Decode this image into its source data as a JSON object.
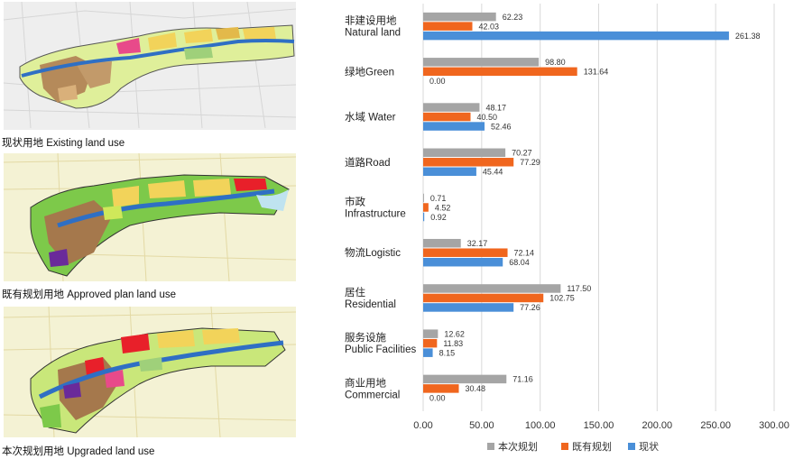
{
  "maps": [
    {
      "caption": "现状用地 Existing land use"
    },
    {
      "caption": "既有规划用地 Approved plan land use"
    },
    {
      "caption": "本次规划用地 Upgraded land use"
    }
  ],
  "chart_data": {
    "type": "bar",
    "orientation": "horizontal",
    "categories": [
      [
        "非建设用地",
        "Natural  land"
      ],
      [
        "绿地Green"
      ],
      [
        "水域 Water"
      ],
      [
        "道路Road"
      ],
      [
        "市政",
        "Infrastructure"
      ],
      [
        "物流Logistic"
      ],
      [
        "居住",
        "Residential"
      ],
      [
        "服务设施",
        "Public Facilities"
      ],
      [
        "商业用地",
        "Commercial"
      ]
    ],
    "series": [
      {
        "name": "本次规划",
        "color": "#a5a5a5",
        "values": [
          62.23,
          98.8,
          48.17,
          70.27,
          0.71,
          32.17,
          117.5,
          12.62,
          71.16
        ],
        "labels": [
          "62.23",
          "98.80",
          "48.17",
          "70.27",
          "0.71",
          "32.17",
          "117.50",
          "12.62",
          "71.16"
        ]
      },
      {
        "name": "既有规划",
        "color": "#f0661e",
        "values": [
          42.03,
          131.64,
          40.5,
          77.29,
          4.52,
          72.14,
          102.75,
          11.83,
          30.48
        ],
        "labels": [
          "42.03",
          "131.64",
          "40.50",
          "77.29",
          "4.52",
          "72.14",
          "102.75",
          "11.83",
          "30.48"
        ]
      },
      {
        "name": "现状",
        "color": "#4a8fd8",
        "values": [
          261.38,
          0.0,
          52.46,
          45.44,
          0.92,
          68.04,
          77.26,
          8.15,
          0.0
        ],
        "labels": [
          "261.38",
          "0.00",
          "52.46",
          "45.44",
          "0.92",
          "68.04",
          "77.26",
          "8.15",
          "0.00"
        ]
      }
    ],
    "xlim": [
      0,
      300
    ],
    "xticks": [
      "0.00",
      "50.00",
      "100.00",
      "150.00",
      "200.00",
      "250.00",
      "300.00"
    ],
    "xtick_values": [
      0,
      50,
      100,
      150,
      200,
      250,
      300
    ],
    "grid": "vertical",
    "legend": "bottom"
  }
}
